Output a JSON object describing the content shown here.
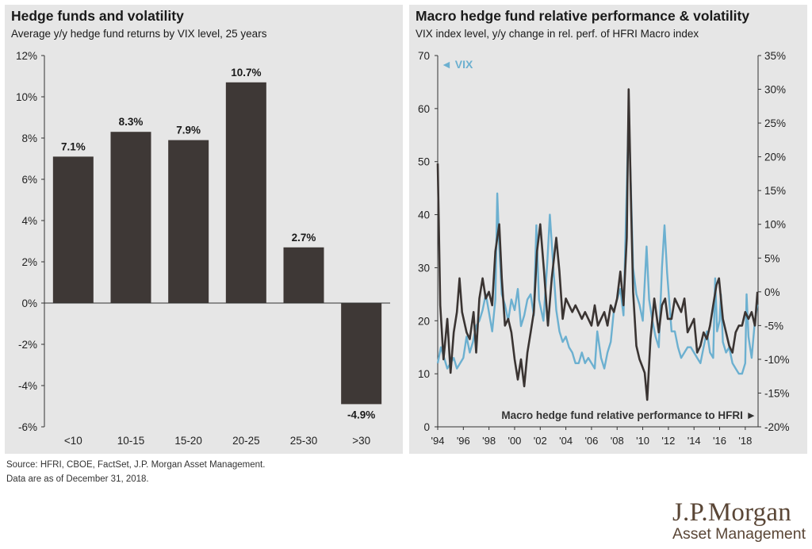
{
  "left": {
    "title": "Hedge funds and volatility",
    "subtitle": "Average y/y hedge fund returns by VIX level, 25 years"
  },
  "right": {
    "title": "Macro hedge fund relative performance & volatility",
    "subtitle": "VIX index level, y/y change in rel. perf. of HFRI Macro index",
    "vix_legend": "◄ VIX",
    "macro_legend": "Macro hedge fund relative performance to HFRI ►"
  },
  "footer": {
    "source": "Source: HFRI, CBOE, FactSet, J.P. Morgan Asset Management.",
    "date_note": "Data are as of December 31, 2018."
  },
  "logo": {
    "name": "J.P.Morgan",
    "sub": "Asset Management"
  },
  "colors": {
    "bar": "#3e3836",
    "vix": "#6cb0d0",
    "macro": "#3a3432",
    "panel": "#e6e6e6"
  },
  "chart_data": [
    {
      "type": "bar",
      "categories": [
        "<10",
        "10-15",
        "15-20",
        "20-25",
        "25-30",
        ">30"
      ],
      "values": [
        7.1,
        8.3,
        7.9,
        10.7,
        2.7,
        -4.9
      ],
      "value_labels": [
        "7.1%",
        "8.3%",
        "7.9%",
        "10.7%",
        "2.7%",
        "-4.9%"
      ],
      "ylim": [
        -6,
        12
      ],
      "yticks": [
        -6,
        -4,
        -2,
        0,
        2,
        4,
        6,
        8,
        10,
        12
      ],
      "ytick_labels": [
        "-6%",
        "-4%",
        "-2%",
        "0%",
        "2%",
        "4%",
        "6%",
        "8%",
        "10%",
        "12%"
      ]
    },
    {
      "type": "line",
      "x_range": [
        1994,
        2019
      ],
      "xtick_labels": [
        "'94",
        "'96",
        "'98",
        "'00",
        "'02",
        "'04",
        "'06",
        "'08",
        "'10",
        "'12",
        "'14",
        "'16",
        "'18"
      ],
      "xtick_values": [
        1994,
        1996,
        1998,
        2000,
        2002,
        2004,
        2006,
        2008,
        2010,
        2012,
        2014,
        2016,
        2018
      ],
      "ylim_left": [
        0,
        70
      ],
      "yticks_left": [
        "0",
        "10",
        "20",
        "30",
        "40",
        "50",
        "60",
        "70"
      ],
      "ylim_right": [
        -20,
        35
      ],
      "yticks_right": [
        "-20%",
        "-15%",
        "-10%",
        "-5%",
        "0%",
        "5%",
        "10%",
        "15%",
        "20%",
        "25%",
        "30%",
        "35%"
      ],
      "series": [
        {
          "name": "VIX",
          "axis": "left",
          "x": [
            1994.0,
            1994.25,
            1994.5,
            1994.75,
            1995.0,
            1995.25,
            1995.5,
            1995.75,
            1996.0,
            1996.25,
            1996.5,
            1996.75,
            1997.0,
            1997.25,
            1997.5,
            1997.75,
            1997.9,
            1998.25,
            1998.5,
            1998.65,
            1998.8,
            1999.0,
            1999.25,
            1999.5,
            1999.75,
            2000.0,
            2000.25,
            2000.5,
            2000.75,
            2001.0,
            2001.25,
            2001.5,
            2001.7,
            2001.9,
            2002.25,
            2002.55,
            2002.75,
            2003.0,
            2003.25,
            2003.5,
            2003.75,
            2004.0,
            2004.25,
            2004.5,
            2004.75,
            2005.0,
            2005.25,
            2005.5,
            2005.75,
            2006.0,
            2006.25,
            2006.45,
            2006.75,
            2007.0,
            2007.25,
            2007.5,
            2007.75,
            2008.0,
            2008.25,
            2008.5,
            2008.75,
            2008.9,
            2009.1,
            2009.25,
            2009.5,
            2009.75,
            2010.0,
            2010.3,
            2010.5,
            2010.75,
            2011.0,
            2011.25,
            2011.5,
            2011.7,
            2011.9,
            2012.25,
            2012.5,
            2012.75,
            2013.0,
            2013.25,
            2013.5,
            2013.75,
            2014.0,
            2014.25,
            2014.5,
            2014.75,
            2015.0,
            2015.25,
            2015.5,
            2015.65,
            2015.8,
            2016.0,
            2016.1,
            2016.25,
            2016.5,
            2016.75,
            2017.0,
            2017.25,
            2017.5,
            2017.75,
            2018.0,
            2018.1,
            2018.25,
            2018.5,
            2018.75,
            2018.95
          ],
          "values": [
            12,
            15,
            13,
            11,
            12,
            13,
            11,
            12,
            13,
            17,
            14,
            16,
            19,
            20,
            22,
            25,
            23,
            18,
            24,
            44,
            34,
            25,
            23,
            20,
            24,
            22,
            26,
            19,
            21,
            24,
            25,
            21,
            38,
            24,
            20,
            31,
            40,
            31,
            22,
            18,
            16,
            17,
            15,
            14,
            12,
            12,
            14,
            12,
            13,
            12,
            11,
            18,
            13,
            11,
            14,
            16,
            22,
            24,
            26,
            21,
            45,
            60,
            43,
            30,
            25,
            23,
            20,
            34,
            24,
            20,
            17,
            15,
            30,
            38,
            29,
            18,
            18,
            15,
            13,
            14,
            15,
            15,
            14,
            13,
            12,
            15,
            18,
            14,
            13,
            28,
            18,
            20,
            25,
            16,
            14,
            15,
            12,
            11,
            10,
            10,
            12,
            25,
            17,
            13,
            20,
            23
          ]
        },
        {
          "name": "Macro hedge fund relative performance to HFRI",
          "axis": "right",
          "x": [
            1994.0,
            1994.2,
            1994.45,
            1994.75,
            1995.0,
            1995.25,
            1995.5,
            1995.7,
            1995.9,
            1996.25,
            1996.5,
            1996.8,
            1997.0,
            1997.25,
            1997.5,
            1997.75,
            1998.0,
            1998.25,
            1998.5,
            1998.8,
            1999.0,
            1999.25,
            1999.5,
            1999.75,
            2000.0,
            2000.25,
            2000.5,
            2000.75,
            2001.0,
            2001.25,
            2001.5,
            2001.75,
            2002.0,
            2002.3,
            2002.6,
            2002.9,
            2003.25,
            2003.5,
            2003.75,
            2004.0,
            2004.25,
            2004.5,
            2004.75,
            2005.0,
            2005.25,
            2005.5,
            2005.75,
            2006.0,
            2006.25,
            2006.5,
            2006.75,
            2007.0,
            2007.25,
            2007.5,
            2007.75,
            2008.0,
            2008.25,
            2008.5,
            2008.75,
            2008.9,
            2009.1,
            2009.25,
            2009.5,
            2009.75,
            2009.95,
            2010.15,
            2010.35,
            2010.6,
            2010.9,
            2011.25,
            2011.5,
            2011.75,
            2011.95,
            2012.25,
            2012.5,
            2012.75,
            2013.0,
            2013.25,
            2013.5,
            2013.75,
            2014.0,
            2014.25,
            2014.5,
            2014.75,
            2015.0,
            2015.25,
            2015.5,
            2015.75,
            2015.95,
            2016.25,
            2016.5,
            2016.75,
            2017.0,
            2017.25,
            2017.5,
            2017.75,
            2018.0,
            2018.25,
            2018.5,
            2018.75,
            2018.95
          ],
          "values": [
            19,
            -2,
            -10,
            -4,
            -12,
            -6,
            -3,
            2,
            -3,
            -6,
            -7,
            -3,
            -9,
            -1,
            2,
            -1,
            0,
            -2,
            6,
            10,
            2,
            -5,
            -4,
            -6,
            -10,
            -13,
            -10,
            -14,
            -9,
            -6,
            -3,
            6,
            10,
            3,
            -5,
            2,
            8,
            3,
            -4,
            -1,
            -2,
            -3,
            -2,
            -3,
            -4,
            -3,
            -4,
            -5,
            -2,
            -5,
            -4,
            -3,
            -5,
            -2,
            -3,
            -1,
            3,
            -2,
            8,
            30,
            12,
            0,
            -8,
            -10,
            -11,
            -12,
            -16,
            -7,
            -1,
            -6,
            -2,
            -1,
            -4,
            -4,
            -1,
            -2,
            -3,
            -1,
            -6,
            -5,
            -4,
            -9,
            -8,
            -6,
            -7,
            -5,
            -2,
            1,
            2,
            -4,
            -6,
            -8,
            -9,
            -6,
            -5,
            -5,
            -3,
            -4,
            -3,
            -5,
            0
          ]
        }
      ]
    }
  ]
}
